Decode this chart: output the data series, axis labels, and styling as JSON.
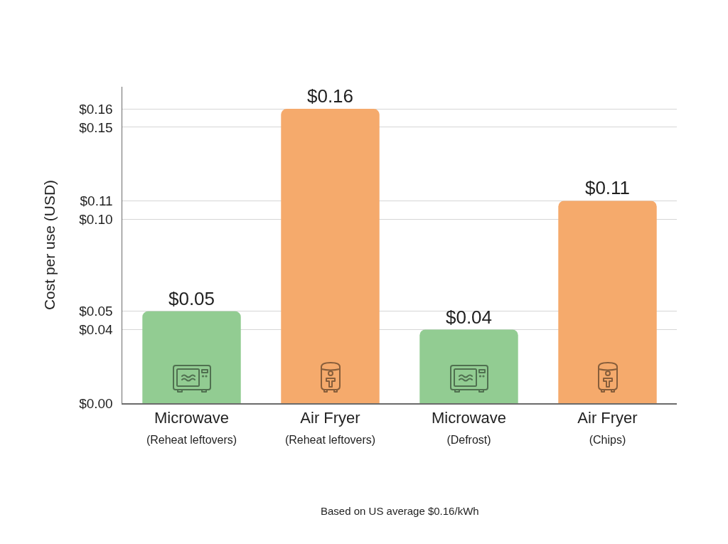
{
  "chart_data": {
    "type": "bar",
    "categories": [
      "Microwave\n(Reheat leftovers)",
      "Air Fryer\n(Reheat leftovers)",
      "Microwave\n(Defrost)",
      "Air Fryer\n(Chips)"
    ],
    "values": [
      0.05,
      0.16,
      0.04,
      0.11
    ],
    "colors": [
      "#92cc92",
      "#f5aa6c",
      "#92cc92",
      "#f5aa6c"
    ],
    "value_labels": [
      "$0.05",
      "$0.16",
      "$0.04",
      "$0.11"
    ],
    "ylabel": "Cost per use (USD)",
    "ylim": [
      0,
      0.172
    ],
    "yticks": [
      {
        "value": 0,
        "label": "$0.00"
      },
      {
        "value": 0.04,
        "label": "$0.04"
      },
      {
        "value": 0.05,
        "label": "$0.05"
      },
      {
        "value": 0.1,
        "label": "$0.10"
      },
      {
        "value": 0.11,
        "label": "$0.11"
      },
      {
        "value": 0.15,
        "label": "$0.15"
      },
      {
        "value": 0.16,
        "label": "$0.16"
      }
    ],
    "grid": "y",
    "annotations": [
      "Based on US average $0.16/kWh"
    ]
  }
}
